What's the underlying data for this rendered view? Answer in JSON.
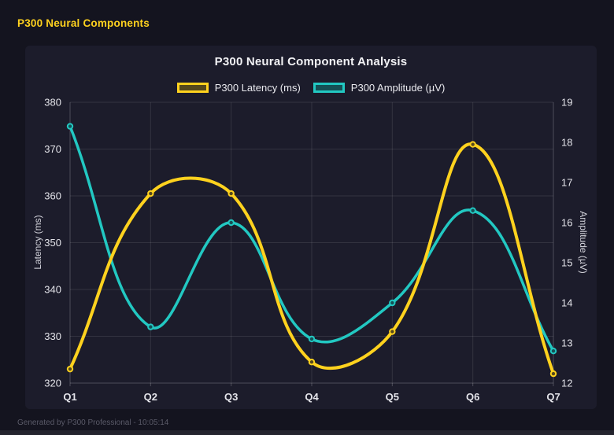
{
  "page": {
    "header": "P300 Neural Components",
    "footer": "Generated by P300 Professional - 10:05:14"
  },
  "colors": {
    "page_bg": "#14141f",
    "panel_bg": "#1c1c2b",
    "header_text": "#ffd21e",
    "title_text": "#f2f2f5",
    "tick_text": "#e4e4ea",
    "grid": "rgba(255,255,255,0.10)",
    "axis_border": "rgba(255,255,255,0.22)",
    "footer_text": "#5a5a68"
  },
  "chart_data": {
    "type": "line",
    "title": "P300 Neural Component Analysis",
    "categories": [
      "Q1",
      "Q2",
      "Q3",
      "Q4",
      "Q5",
      "Q6",
      "Q7"
    ],
    "series": [
      {
        "name": "P300 Latency (ms)",
        "axis": "left",
        "color": "#ffd21e",
        "fill_color": "#55491c",
        "line_width": 4,
        "values": [
          323,
          360.5,
          360.5,
          324.5,
          331,
          371,
          322
        ]
      },
      {
        "name": "P300 Amplitude (µV)",
        "axis": "right",
        "color": "#22c8c2",
        "fill_color": "#155055",
        "line_width": 3.5,
        "values": [
          18.4,
          13.4,
          16.0,
          13.1,
          14.0,
          16.3,
          12.8
        ]
      }
    ],
    "left_axis": {
      "label": "Latency (ms)",
      "min": 320,
      "max": 380,
      "step": 10
    },
    "right_axis": {
      "label": "Amplitude (µV)",
      "min": 12,
      "max": 19,
      "step": 1
    },
    "grid": true,
    "legend_position": "top",
    "line_tension": 0.4
  }
}
